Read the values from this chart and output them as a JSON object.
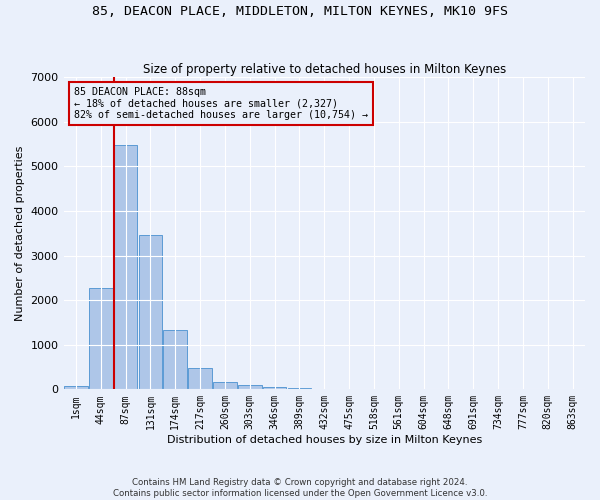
{
  "title": "85, DEACON PLACE, MIDDLETON, MILTON KEYNES, MK10 9FS",
  "subtitle": "Size of property relative to detached houses in Milton Keynes",
  "xlabel": "Distribution of detached houses by size in Milton Keynes",
  "ylabel": "Number of detached properties",
  "footnote1": "Contains HM Land Registry data © Crown copyright and database right 2024.",
  "footnote2": "Contains public sector information licensed under the Open Government Licence v3.0.",
  "bar_labels": [
    "1sqm",
    "44sqm",
    "87sqm",
    "131sqm",
    "174sqm",
    "217sqm",
    "260sqm",
    "303sqm",
    "346sqm",
    "389sqm",
    "432sqm",
    "475sqm",
    "518sqm",
    "561sqm",
    "604sqm",
    "648sqm",
    "691sqm",
    "734sqm",
    "777sqm",
    "820sqm",
    "863sqm"
  ],
  "bar_values": [
    80,
    2280,
    5480,
    3450,
    1320,
    480,
    160,
    95,
    50,
    30,
    15,
    5,
    0,
    0,
    0,
    0,
    0,
    0,
    0,
    0,
    0
  ],
  "bar_color": "#aec6e8",
  "bar_edge_color": "#5b9bd5",
  "ylim": [
    0,
    7000
  ],
  "yticks": [
    0,
    1000,
    2000,
    3000,
    4000,
    5000,
    6000,
    7000
  ],
  "property_label": "85 DEACON PLACE: 88sqm",
  "annotation_line1": "← 18% of detached houses are smaller (2,327)",
  "annotation_line2": "82% of semi-detached houses are larger (10,754) →",
  "vline_color": "#cc0000",
  "bg_color": "#eaf0fb",
  "grid_color": "#ffffff"
}
